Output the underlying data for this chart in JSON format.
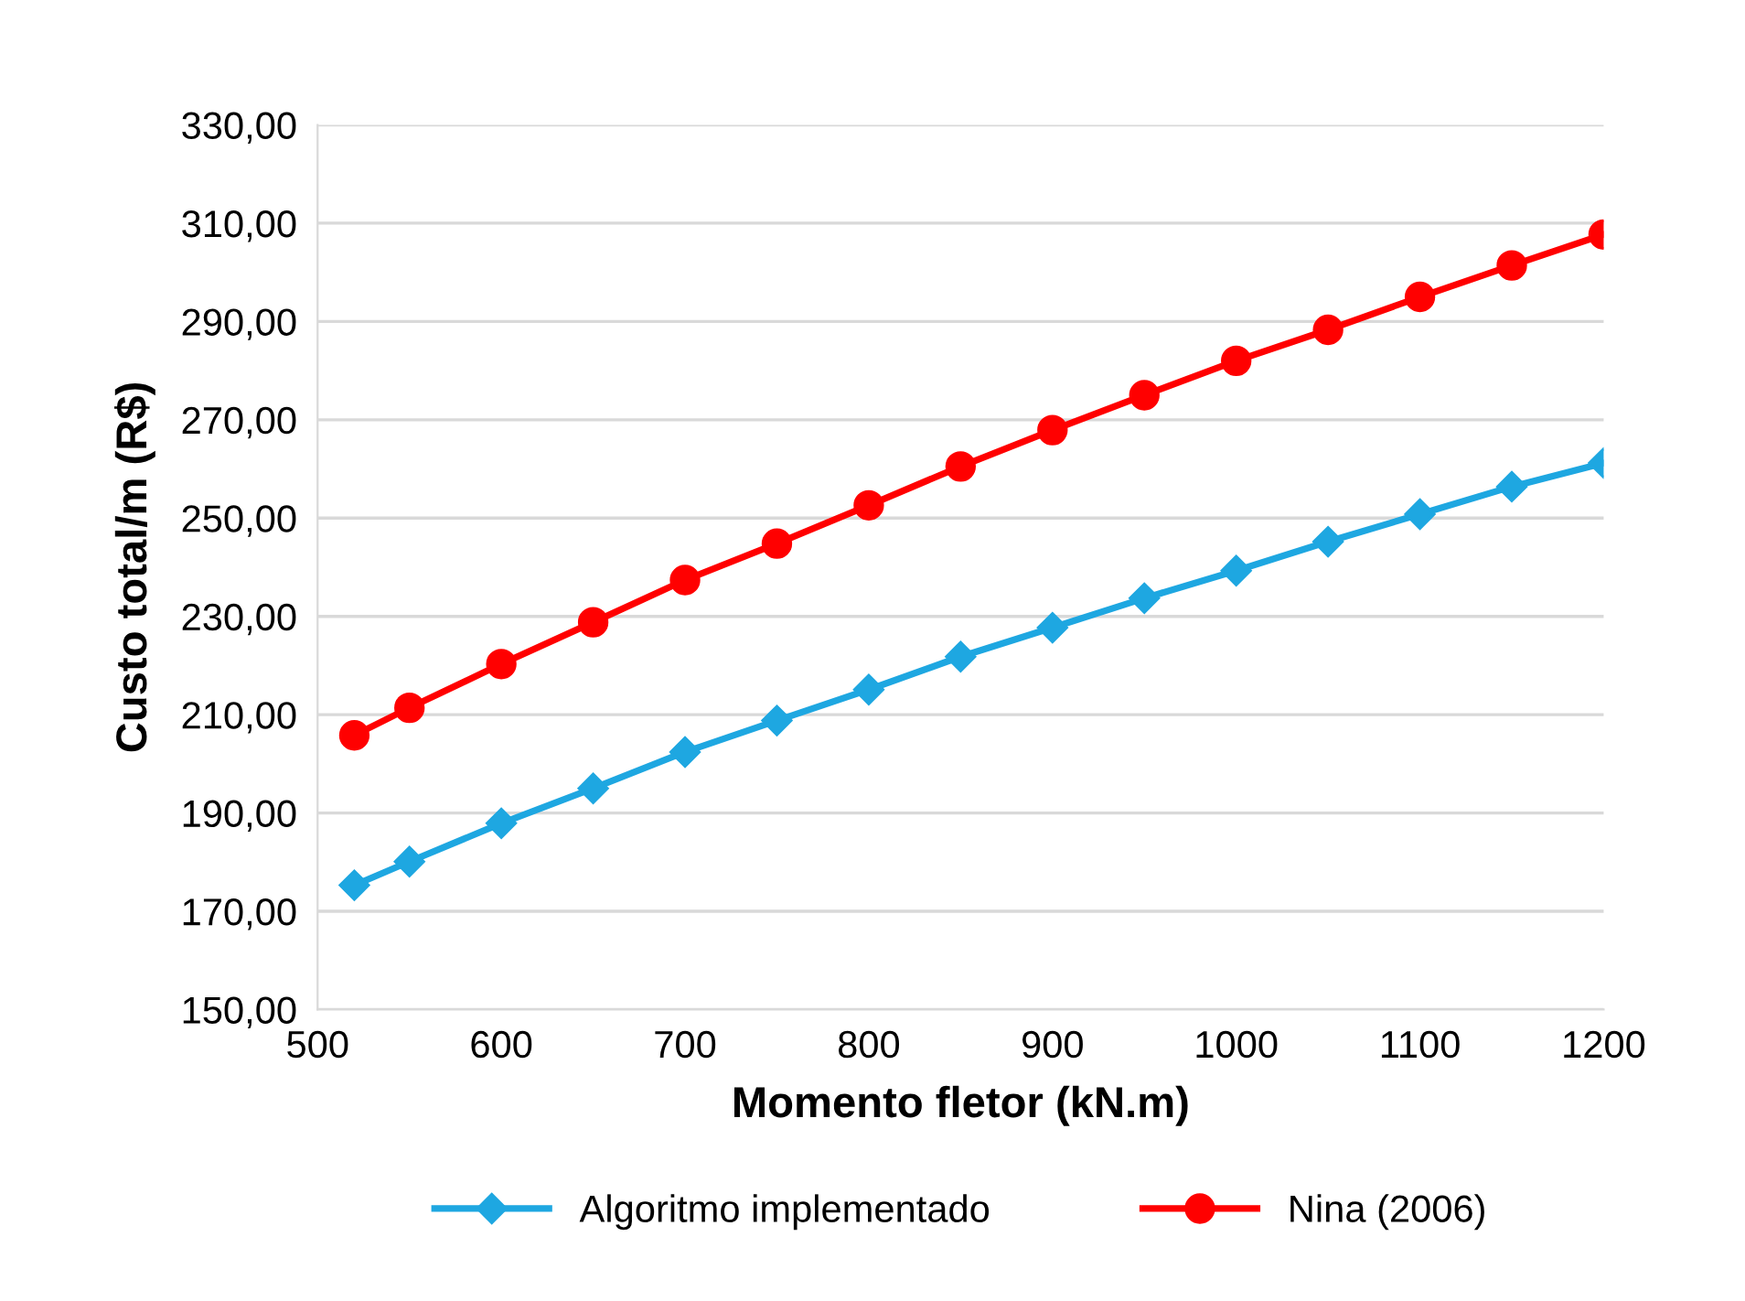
{
  "chart_data": {
    "type": "line",
    "xlabel": "Momento fletor (kN.m)",
    "ylabel": "Custo total/m (R$)",
    "x": [
      520,
      550,
      600,
      650,
      700,
      750,
      800,
      850,
      900,
      950,
      1000,
      1050,
      1100,
      1150,
      1200
    ],
    "series": [
      {
        "name": "Algoritmo implementado",
        "color": "#1ea7e1",
        "marker": "diamond",
        "values": [
          175.3,
          180.1,
          187.9,
          195.0,
          202.4,
          208.8,
          215.1,
          221.8,
          227.7,
          233.7,
          239.3,
          245.2,
          250.8,
          256.4,
          261.2
        ]
      },
      {
        "name": "Nina (2006)",
        "color": "#ff0000",
        "marker": "circle",
        "values": [
          205.8,
          211.4,
          220.3,
          228.8,
          237.4,
          244.8,
          252.6,
          260.5,
          267.9,
          275.0,
          282.0,
          288.3,
          295.0,
          301.4,
          307.7
        ]
      }
    ],
    "xlim": [
      500,
      1200
    ],
    "xticks": [
      500,
      600,
      700,
      800,
      900,
      1000,
      1100,
      1200
    ],
    "ylim": [
      150,
      330
    ],
    "yticks": [
      {
        "value": 150,
        "label": "150,00"
      },
      {
        "value": 170,
        "label": "170,00"
      },
      {
        "value": 190,
        "label": "190,00"
      },
      {
        "value": 210,
        "label": "210,00"
      },
      {
        "value": 230,
        "label": "230,00"
      },
      {
        "value": 250,
        "label": "250,00"
      },
      {
        "value": 270,
        "label": "270,00"
      },
      {
        "value": 290,
        "label": "290,00"
      },
      {
        "value": 310,
        "label": "310,00"
      },
      {
        "value": 330,
        "label": "330,00"
      }
    ],
    "grid": "y",
    "legend": "bottom",
    "line_style": "solid"
  }
}
